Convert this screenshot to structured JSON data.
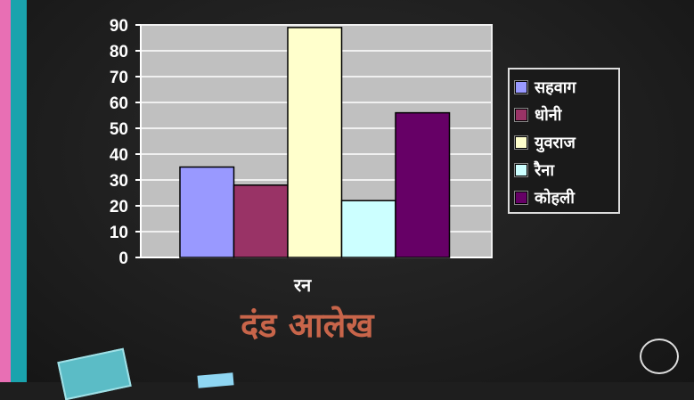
{
  "chart_data": {
    "type": "bar",
    "title": "दंड आलेख",
    "xlabel": "रन",
    "ylabel": "",
    "ylim": [
      0,
      90
    ],
    "yticks": [
      0,
      10,
      20,
      30,
      40,
      50,
      60,
      70,
      80,
      90
    ],
    "grid": true,
    "legend_position": "right",
    "series": [
      {
        "name": "सहवाग",
        "value": 35,
        "color": "#9999ff"
      },
      {
        "name": "धोनी",
        "value": 28,
        "color": "#993366"
      },
      {
        "name": "युवराज",
        "value": 89,
        "color": "#ffffcc"
      },
      {
        "name": "रैना",
        "value": 22,
        "color": "#ccffff"
      },
      {
        "name": "कोहली",
        "value": 56,
        "color": "#660066"
      }
    ],
    "plot_background": "#c0c0c0"
  }
}
